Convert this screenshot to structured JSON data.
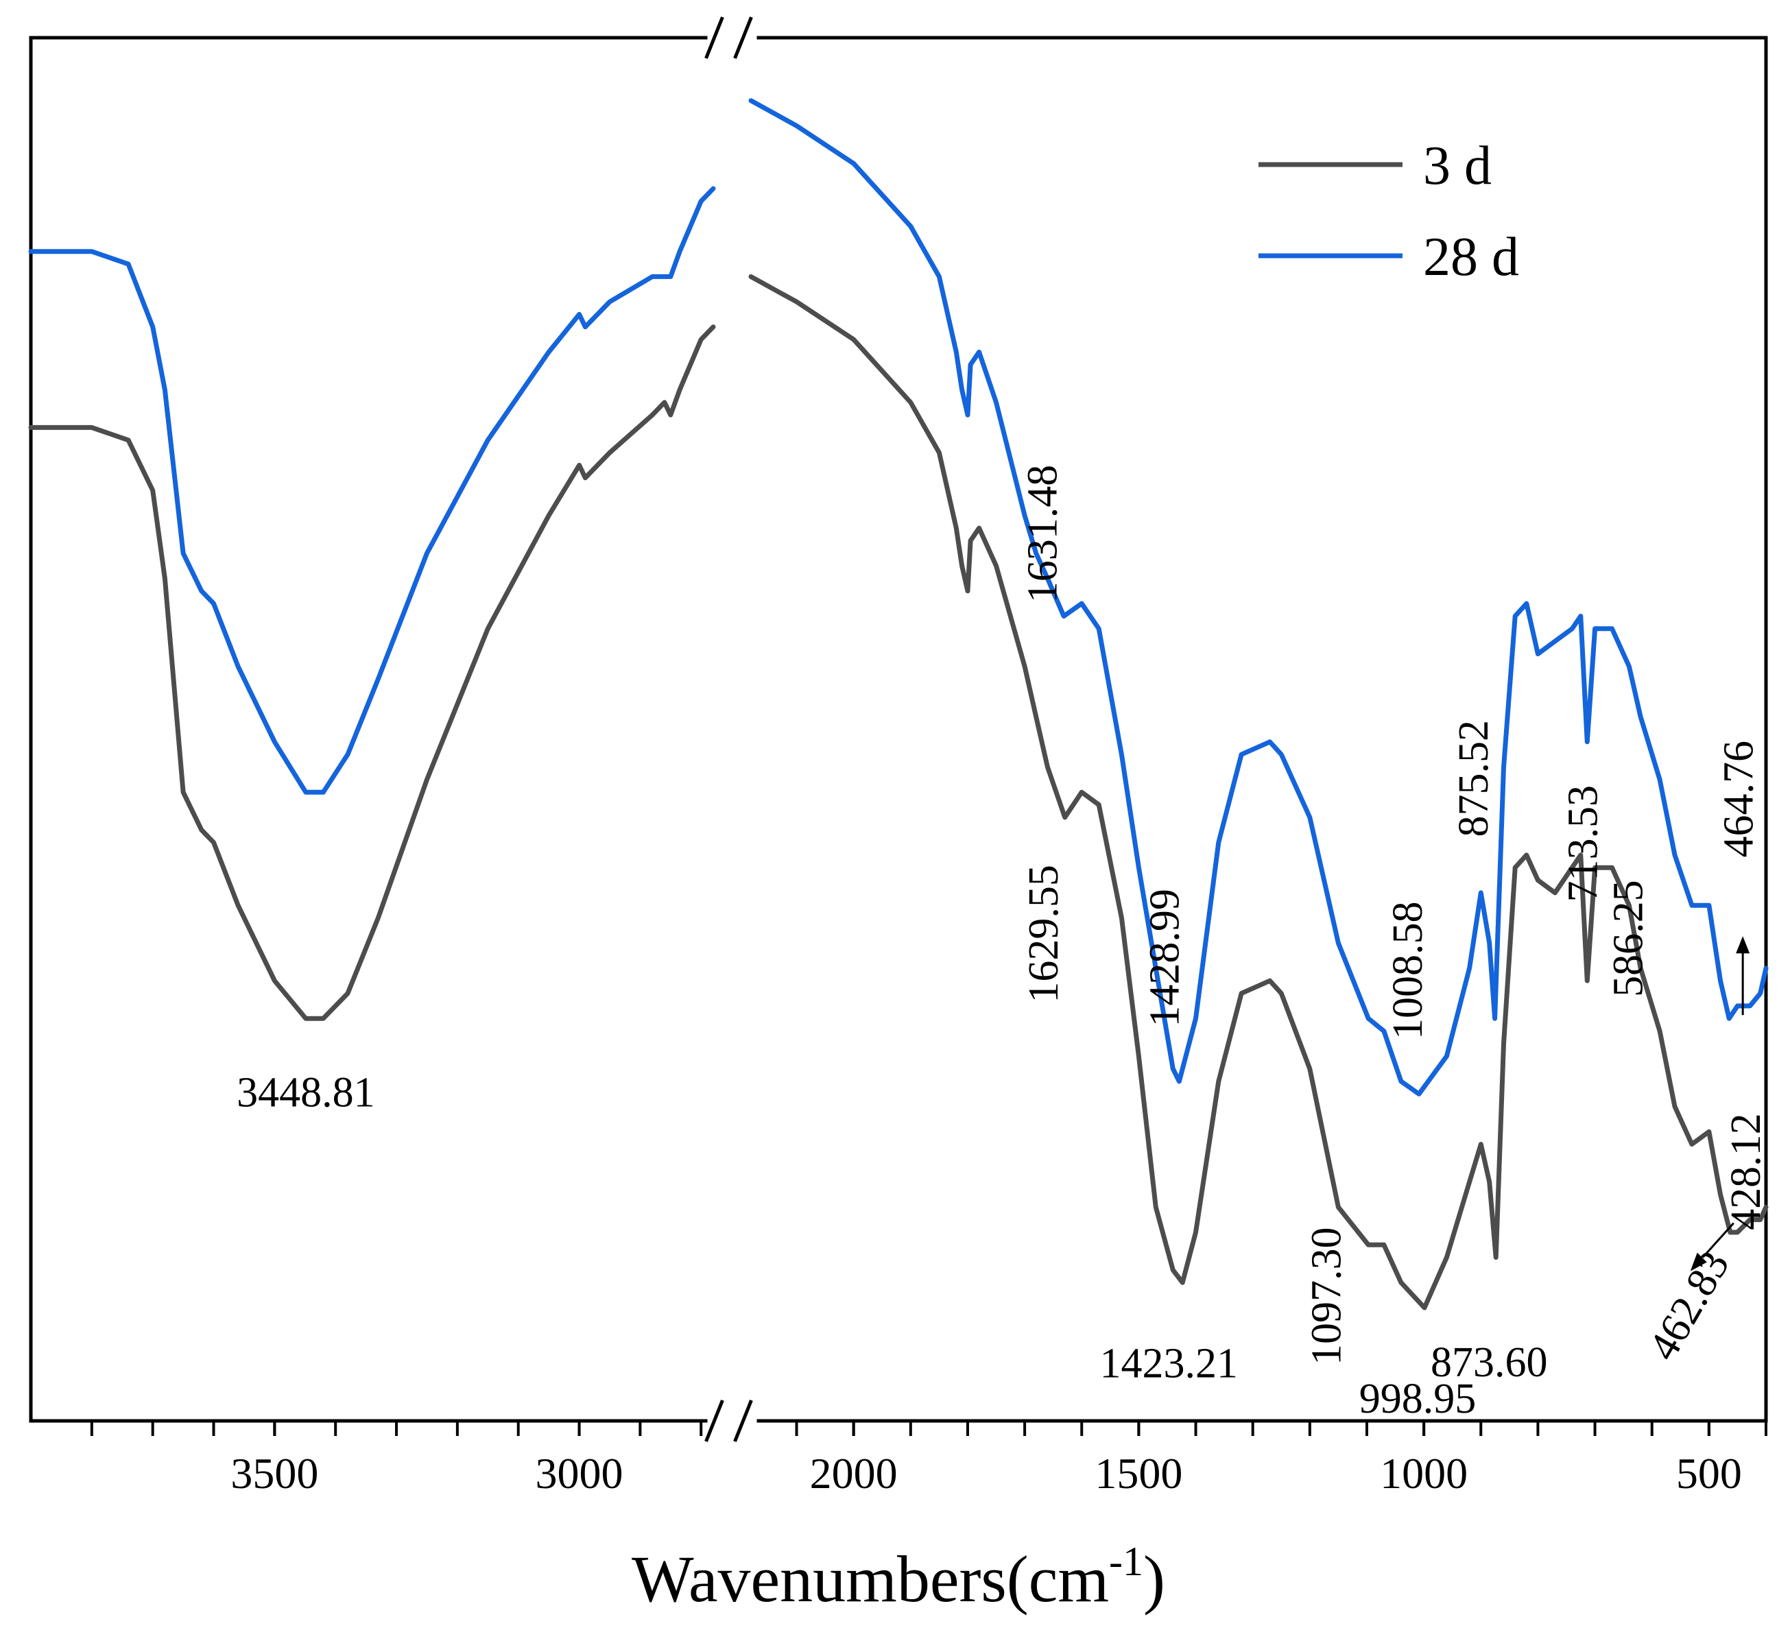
{
  "chart_data": {
    "type": "line",
    "title": "",
    "xlabel": "Wavenumbers(cm",
    "xlabel_sup": "-1",
    "xlabel_close": ")",
    "ylabel": "",
    "x_axis": {
      "reversed": true,
      "broken": true,
      "segments": [
        {
          "xlim": [
            3900,
            2780
          ],
          "ticks": [
            3800,
            3700,
            3600,
            3500,
            3400,
            3300,
            3200,
            3100,
            3000,
            2900,
            2800
          ],
          "labels": [
            3500,
            3000
          ]
        },
        {
          "xlim": [
            2180,
            400
          ],
          "ticks": [
            2100,
            2000,
            1900,
            1800,
            1700,
            1600,
            1500,
            1400,
            1300,
            1200,
            1100,
            1000,
            900,
            800,
            700,
            600,
            500,
            400
          ],
          "labels": [
            2000,
            1500,
            1000,
            500
          ]
        }
      ]
    },
    "ylim": [
      -0.05,
      1.05
    ],
    "series": [
      {
        "name": "3 d",
        "color": "#4d4d4d",
        "points": [
          [
            3900,
            0.74
          ],
          [
            3800,
            0.74
          ],
          [
            3740,
            0.73
          ],
          [
            3700,
            0.69
          ],
          [
            3680,
            0.62
          ],
          [
            3650,
            0.45
          ],
          [
            3620,
            0.42
          ],
          [
            3600,
            0.41
          ],
          [
            3560,
            0.36
          ],
          [
            3500,
            0.3
          ],
          [
            3448.81,
            0.27
          ],
          [
            3420,
            0.27
          ],
          [
            3380,
            0.29
          ],
          [
            3330,
            0.35
          ],
          [
            3250,
            0.46
          ],
          [
            3150,
            0.58
          ],
          [
            3050,
            0.67
          ],
          [
            3000,
            0.71
          ],
          [
            2990,
            0.7
          ],
          [
            2950,
            0.72
          ],
          [
            2880,
            0.75
          ],
          [
            2860,
            0.76
          ],
          [
            2850,
            0.75
          ],
          [
            2835,
            0.77
          ],
          [
            2800,
            0.81
          ],
          [
            2780,
            0.82
          ],
          [
            2180,
            0.86
          ],
          [
            2100,
            0.84
          ],
          [
            2000,
            0.81
          ],
          [
            1900,
            0.76
          ],
          [
            1850,
            0.72
          ],
          [
            1820,
            0.66
          ],
          [
            1810,
            0.63
          ],
          [
            1800,
            0.61
          ],
          [
            1795,
            0.65
          ],
          [
            1780,
            0.66
          ],
          [
            1750,
            0.63
          ],
          [
            1700,
            0.55
          ],
          [
            1680,
            0.51
          ],
          [
            1660,
            0.47
          ],
          [
            1629.55,
            0.43
          ],
          [
            1600,
            0.45
          ],
          [
            1570,
            0.44
          ],
          [
            1530,
            0.35
          ],
          [
            1500,
            0.24
          ],
          [
            1470,
            0.12
          ],
          [
            1440,
            0.07
          ],
          [
            1423.21,
            0.06
          ],
          [
            1400,
            0.1
          ],
          [
            1360,
            0.22
          ],
          [
            1320,
            0.29
          ],
          [
            1270,
            0.3
          ],
          [
            1250,
            0.29
          ],
          [
            1200,
            0.23
          ],
          [
            1150,
            0.12
          ],
          [
            1097.3,
            0.09
          ],
          [
            1070,
            0.09
          ],
          [
            1040,
            0.06
          ],
          [
            998.95,
            0.04
          ],
          [
            960,
            0.08
          ],
          [
            920,
            0.14
          ],
          [
            900,
            0.17
          ],
          [
            885,
            0.14
          ],
          [
            873.6,
            0.08
          ],
          [
            860,
            0.25
          ],
          [
            840,
            0.39
          ],
          [
            820,
            0.4
          ],
          [
            800,
            0.38
          ],
          [
            770,
            0.37
          ],
          [
            740,
            0.39
          ],
          [
            725,
            0.4
          ],
          [
            713.53,
            0.3
          ],
          [
            700,
            0.39
          ],
          [
            670,
            0.39
          ],
          [
            640,
            0.36
          ],
          [
            620,
            0.31
          ],
          [
            586.25,
            0.26
          ],
          [
            560,
            0.2
          ],
          [
            530,
            0.17
          ],
          [
            500,
            0.18
          ],
          [
            480,
            0.13
          ],
          [
            462.83,
            0.1
          ],
          [
            450,
            0.1
          ],
          [
            428.12,
            0.11
          ],
          [
            410,
            0.11
          ],
          [
            400,
            0.12
          ]
        ]
      },
      {
        "name": "28 d",
        "color": "#1464dc",
        "points": [
          [
            3900,
            0.88
          ],
          [
            3800,
            0.88
          ],
          [
            3740,
            0.87
          ],
          [
            3700,
            0.82
          ],
          [
            3680,
            0.77
          ],
          [
            3650,
            0.64
          ],
          [
            3620,
            0.61
          ],
          [
            3600,
            0.6
          ],
          [
            3560,
            0.55
          ],
          [
            3500,
            0.49
          ],
          [
            3448.81,
            0.45
          ],
          [
            3420,
            0.45
          ],
          [
            3380,
            0.48
          ],
          [
            3330,
            0.54
          ],
          [
            3250,
            0.64
          ],
          [
            3150,
            0.73
          ],
          [
            3050,
            0.8
          ],
          [
            3000,
            0.83
          ],
          [
            2990,
            0.82
          ],
          [
            2950,
            0.84
          ],
          [
            2880,
            0.86
          ],
          [
            2860,
            0.86
          ],
          [
            2850,
            0.86
          ],
          [
            2835,
            0.88
          ],
          [
            2800,
            0.92
          ],
          [
            2780,
            0.93
          ],
          [
            2180,
            1.0
          ],
          [
            2100,
            0.98
          ],
          [
            2000,
            0.95
          ],
          [
            1900,
            0.9
          ],
          [
            1850,
            0.86
          ],
          [
            1820,
            0.8
          ],
          [
            1810,
            0.77
          ],
          [
            1800,
            0.75
          ],
          [
            1795,
            0.79
          ],
          [
            1780,
            0.8
          ],
          [
            1750,
            0.76
          ],
          [
            1700,
            0.67
          ],
          [
            1680,
            0.64
          ],
          [
            1660,
            0.62
          ],
          [
            1631.48,
            0.59
          ],
          [
            1600,
            0.6
          ],
          [
            1570,
            0.58
          ],
          [
            1530,
            0.48
          ],
          [
            1500,
            0.39
          ],
          [
            1470,
            0.31
          ],
          [
            1440,
            0.23
          ],
          [
            1428.99,
            0.22
          ],
          [
            1400,
            0.27
          ],
          [
            1360,
            0.41
          ],
          [
            1320,
            0.48
          ],
          [
            1270,
            0.49
          ],
          [
            1250,
            0.48
          ],
          [
            1200,
            0.43
          ],
          [
            1150,
            0.33
          ],
          [
            1097.3,
            0.27
          ],
          [
            1070,
            0.26
          ],
          [
            1040,
            0.22
          ],
          [
            1008.58,
            0.21
          ],
          [
            960,
            0.24
          ],
          [
            920,
            0.31
          ],
          [
            900,
            0.37
          ],
          [
            885,
            0.33
          ],
          [
            875.52,
            0.27
          ],
          [
            860,
            0.47
          ],
          [
            840,
            0.59
          ],
          [
            820,
            0.6
          ],
          [
            800,
            0.56
          ],
          [
            770,
            0.57
          ],
          [
            740,
            0.58
          ],
          [
            725,
            0.59
          ],
          [
            713.53,
            0.49
          ],
          [
            700,
            0.58
          ],
          [
            670,
            0.58
          ],
          [
            640,
            0.55
          ],
          [
            620,
            0.51
          ],
          [
            586.25,
            0.46
          ],
          [
            560,
            0.4
          ],
          [
            530,
            0.36
          ],
          [
            500,
            0.36
          ],
          [
            480,
            0.3
          ],
          [
            464.76,
            0.27
          ],
          [
            450,
            0.28
          ],
          [
            428.12,
            0.28
          ],
          [
            410,
            0.29
          ],
          [
            400,
            0.31
          ]
        ]
      }
    ],
    "annotations": [
      {
        "text": "3448.81",
        "series": "3 d",
        "x": 3448.81,
        "rotate": 0
      },
      {
        "text": "1631.48",
        "series": "28 d",
        "x": 1631.48,
        "rotate": -90
      },
      {
        "text": "1629.55",
        "series": "3 d",
        "x": 1629.55,
        "rotate": -90
      },
      {
        "text": "1428.99",
        "series": "28 d",
        "x": 1428.99,
        "rotate": -90
      },
      {
        "text": "1423.21",
        "series": "3 d",
        "x": 1423.21,
        "rotate": 0
      },
      {
        "text": "1097.30",
        "series": "3 d",
        "x": 1097.3,
        "rotate": -90
      },
      {
        "text": "1008.58",
        "series": "28 d",
        "x": 1008.58,
        "rotate": -90
      },
      {
        "text": "998.95",
        "series": "3 d",
        "x": 998.95,
        "rotate": 0
      },
      {
        "text": "875.52",
        "series": "28 d",
        "x": 875.52,
        "rotate": -90
      },
      {
        "text": "873.60",
        "series": "3 d",
        "x": 873.6,
        "rotate": 0
      },
      {
        "text": "713.53",
        "series": "3 d",
        "x": 713.53,
        "rotate": -90
      },
      {
        "text": "586.25",
        "series": "3 d",
        "x": 586.25,
        "rotate": -90
      },
      {
        "text": "464.76",
        "series": "28 d",
        "x": 464.76,
        "rotate": -90
      },
      {
        "text": "462.83",
        "series": "3 d",
        "x": 462.83,
        "rotate": -60
      },
      {
        "text": "428.12",
        "series": "3 d",
        "x": 428.12,
        "rotate": -90
      }
    ],
    "legend": {
      "position": "top-right",
      "entries": [
        "3 d",
        "28 d"
      ]
    },
    "grid": false
  }
}
